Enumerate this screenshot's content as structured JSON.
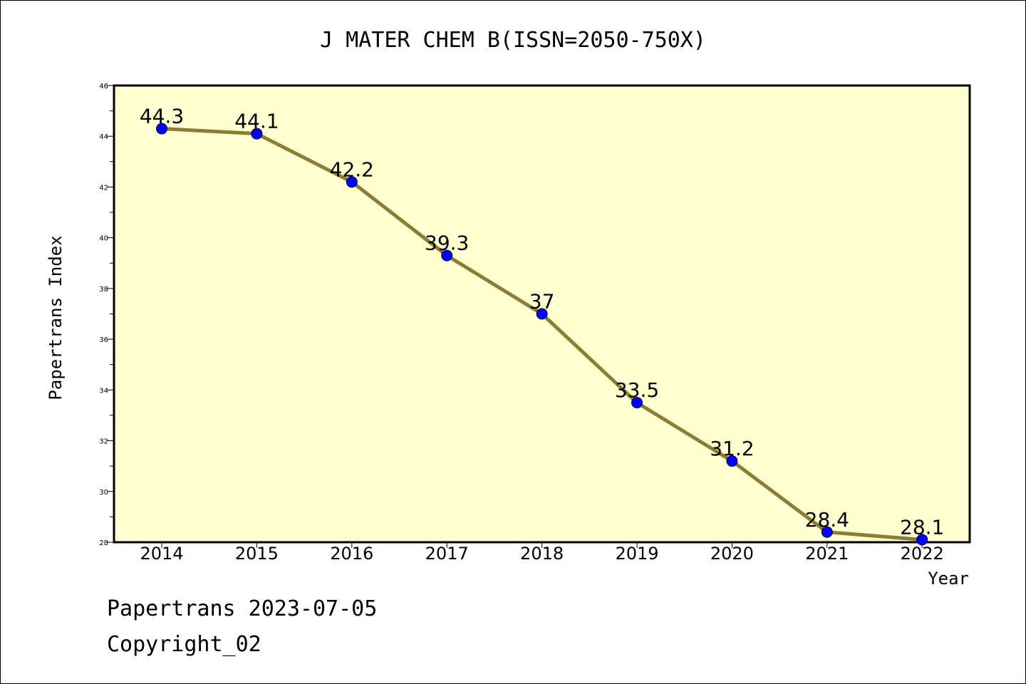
{
  "chart_data": {
    "type": "line",
    "title": "J MATER CHEM B(ISSN=2050-750X)",
    "xlabel": "Year",
    "ylabel": "Papertrans Index",
    "categories": [
      "2014",
      "2015",
      "2016",
      "2017",
      "2018",
      "2019",
      "2020",
      "2021",
      "2022"
    ],
    "series": [
      {
        "values": [
          44.3,
          44.1,
          42.2,
          39.3,
          37,
          33.5,
          31.2,
          28.4,
          28.1
        ],
        "labels": [
          "44.3",
          "44.1",
          "42.2",
          "39.3",
          "37",
          "33.5",
          "31.2",
          "28.4",
          "28.1"
        ]
      }
    ],
    "ylim": [
      28,
      46
    ],
    "yticks": [
      "28",
      "30",
      "32",
      "34",
      "36",
      "38",
      "40",
      "42",
      "44",
      "46"
    ],
    "grid": false,
    "colors": {
      "plot_background": "#ffffd0",
      "line": "#8b7d35",
      "marker": "#0000ff"
    }
  },
  "footer": {
    "line1": "Papertrans 2023-07-05",
    "line2": "Copyright_02"
  }
}
